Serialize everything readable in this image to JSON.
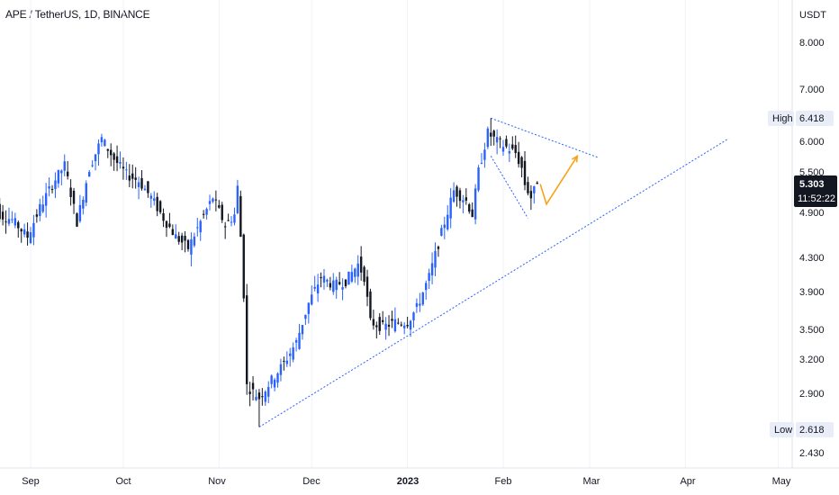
{
  "header": {
    "title": "APE / TetherUS, 1D, BINANCE"
  },
  "price_axis": {
    "currency": "USDT",
    "ticks": [
      "8.000",
      "7.000",
      "6.000",
      "5.500",
      "4.900",
      "4.300",
      "3.900",
      "3.500",
      "3.200",
      "2.900",
      "2.430"
    ],
    "high_label": "High",
    "high_value": "6.418",
    "low_label": "Low",
    "low_value": "2.618",
    "current_price": "5.303",
    "countdown": "11:52:22"
  },
  "time_axis": {
    "ticks": [
      "Sep",
      "Oct",
      "Nov",
      "Dec",
      "2023",
      "Feb",
      "Mar",
      "Apr",
      "May"
    ]
  },
  "colors": {
    "up": "#2962ff",
    "down": "#131722",
    "trendline": "#2962ff",
    "projection": "#f7a21b",
    "current_tag_bg": "#131722",
    "hl_tag_bg": "#e8edf7"
  },
  "chart_data": {
    "type": "candlestick",
    "title": "APE / TetherUS, 1D, BINANCE",
    "y_scale": "log",
    "ylim": [
      2.35,
      8.6
    ],
    "x_start": "2022-08-19",
    "x_ticks": [
      {
        "label": "Sep",
        "date": "2022-09-01"
      },
      {
        "label": "Oct",
        "date": "2022-10-01"
      },
      {
        "label": "Nov",
        "date": "2022-11-01"
      },
      {
        "label": "Dec",
        "date": "2022-12-01"
      },
      {
        "label": "2023",
        "date": "2023-01-01"
      },
      {
        "label": "Feb",
        "date": "2023-02-01"
      },
      {
        "label": "Mar",
        "date": "2023-03-01"
      },
      {
        "label": "Apr",
        "date": "2023-04-01"
      },
      {
        "label": "May",
        "date": "2023-05-01"
      }
    ],
    "high": 6.418,
    "low": 2.618,
    "last": 5.303,
    "path": [
      [
        "2022-08-19",
        5.2
      ],
      [
        "2022-08-22",
        4.85
      ],
      [
        "2022-08-26",
        4.78
      ],
      [
        "2022-08-31",
        4.55
      ],
      [
        "2022-09-04",
        4.95
      ],
      [
        "2022-09-08",
        5.3
      ],
      [
        "2022-09-12",
        5.6
      ],
      [
        "2022-09-16",
        4.75
      ],
      [
        "2022-09-20",
        5.55
      ],
      [
        "2022-09-24",
        6.05
      ],
      [
        "2022-09-28",
        5.7
      ],
      [
        "2022-10-02",
        5.45
      ],
      [
        "2022-10-06",
        5.35
      ],
      [
        "2022-10-10",
        5.1
      ],
      [
        "2022-10-14",
        4.8
      ],
      [
        "2022-10-18",
        4.55
      ],
      [
        "2022-10-22",
        4.4
      ],
      [
        "2022-10-26",
        4.75
      ],
      [
        "2022-10-30",
        5.1
      ],
      [
        "2022-11-03",
        4.7
      ],
      [
        "2022-11-06",
        4.85
      ],
      [
        "2022-11-07",
        5.25
      ],
      [
        "2022-11-08",
        4.55
      ],
      [
        "2022-11-09",
        3.85
      ],
      [
        "2022-11-10",
        2.95
      ],
      [
        "2022-11-14",
        2.85
      ],
      [
        "2022-11-18",
        3.0
      ],
      [
        "2022-11-22",
        3.15
      ],
      [
        "2022-11-26",
        3.35
      ],
      [
        "2022-11-30",
        3.75
      ],
      [
        "2022-12-04",
        4.05
      ],
      [
        "2022-12-08",
        3.95
      ],
      [
        "2022-12-12",
        4.0
      ],
      [
        "2022-12-16",
        4.2
      ],
      [
        "2022-12-18",
        4.05
      ],
      [
        "2022-12-20",
        3.55
      ],
      [
        "2022-12-24",
        3.5
      ],
      [
        "2022-12-28",
        3.55
      ],
      [
        "2023-01-01",
        3.55
      ],
      [
        "2023-01-04",
        3.7
      ],
      [
        "2023-01-08",
        4.05
      ],
      [
        "2023-01-12",
        4.6
      ],
      [
        "2023-01-16",
        5.2
      ],
      [
        "2023-01-20",
        5.05
      ],
      [
        "2023-01-22",
        4.85
      ],
      [
        "2023-01-24",
        5.5
      ],
      [
        "2023-01-27",
        6.15
      ],
      [
        "2023-01-30",
        6.0
      ],
      [
        "2023-02-02",
        5.9
      ],
      [
        "2023-02-05",
        5.8
      ],
      [
        "2023-02-07",
        5.55
      ],
      [
        "2023-02-08",
        5.3
      ],
      [
        "2023-02-10",
        5.1
      ],
      [
        "2023-02-12",
        5.303
      ]
    ],
    "drawings": {
      "support_trendline": [
        [
          "2022-11-14",
          2.618
        ],
        [
          "2023-04-15",
          6.05
        ]
      ],
      "wedge_upper": [
        [
          "2023-01-28",
          6.418
        ],
        [
          "2023-03-04",
          5.72
        ]
      ],
      "wedge_lower": [
        [
          "2023-01-28",
          5.75
        ],
        [
          "2023-02-09",
          4.8
        ]
      ],
      "projection": [
        [
          "2023-02-13",
          5.3
        ],
        [
          "2023-02-15",
          5.0
        ],
        [
          "2023-02-25",
          5.75
        ]
      ]
    }
  }
}
